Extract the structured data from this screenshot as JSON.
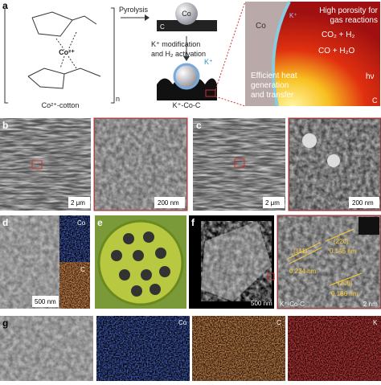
{
  "panel_a": {
    "label": "a",
    "cotton_ion": "Co²⁺",
    "cotton_label": "Co²⁺-cotton",
    "repeat": "n",
    "pyrolysis": "Pyrolysis",
    "carbon": "C",
    "cobalt": "Co",
    "step2_line1": "K⁺ modification",
    "step2_line2": "and H₂ activation",
    "k_ion": "K⁺",
    "product": "K⁺-Co-C",
    "zoom": {
      "cobalt": "Co",
      "k_ion": "K⁺",
      "porosity_line1": "High porosity for",
      "porosity_line2": "gas reactions",
      "reaction1": "CO₂ + H₂",
      "reaction2": "CO + H₂O",
      "light": "hν",
      "heat_line1": "Efficient heat",
      "heat_line2": "generation",
      "heat_line3": "and transfer",
      "carbon": "C"
    }
  },
  "panel_b": {
    "label": "b",
    "scale_main": "2 μm",
    "scale_inset": "200 nm"
  },
  "panel_c": {
    "label": "c",
    "scale_main": "2 μm",
    "scale_inset": "200 nm"
  },
  "panel_d": {
    "label": "d",
    "map1": "Co",
    "map2": "C",
    "scale": "500 nm"
  },
  "panel_e": {
    "label": "e"
  },
  "panel_f": {
    "label": "f",
    "scale_main": "500 nm",
    "sample": "K⁺-Co-C",
    "plane1": "(111)",
    "spacing1": "0.234 nm",
    "plane2": "(220)",
    "spacing2": "0.145 nm",
    "plane3": "(200)",
    "spacing3": "0.186 nm",
    "scale_hr": "2 nm"
  },
  "panel_g": {
    "label": "g",
    "map1": "Co",
    "map2": "C",
    "map3": "K"
  }
}
